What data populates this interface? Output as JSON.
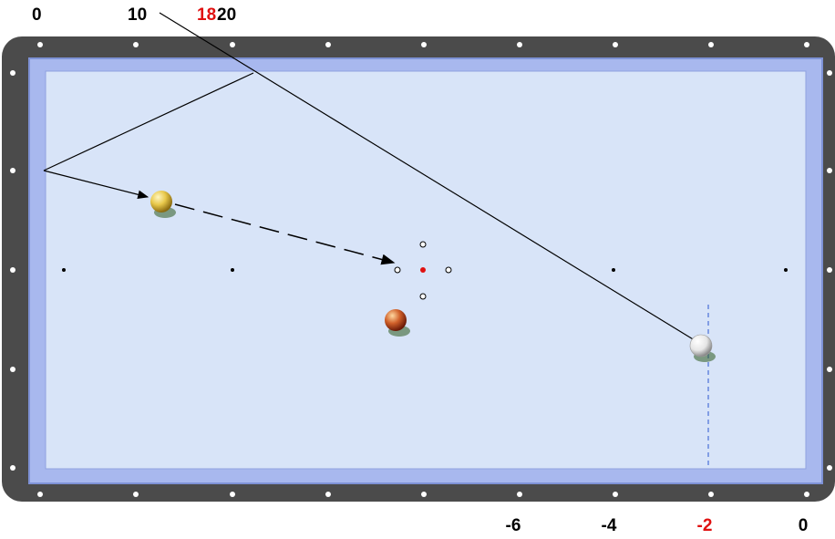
{
  "top_scale": {
    "labels": [
      {
        "id": "top-0",
        "text": "0",
        "color": "#000000"
      },
      {
        "id": "top-10",
        "text": "10",
        "color": "#000000"
      },
      {
        "id": "top-18",
        "text": "18",
        "color": "#e01010"
      },
      {
        "id": "top-20",
        "text": "20",
        "color": "#000000"
      }
    ]
  },
  "bottom_scale": {
    "labels": [
      {
        "id": "bottom-neg6",
        "text": "-6",
        "color": "#000000"
      },
      {
        "id": "bottom-neg4",
        "text": "-4",
        "color": "#000000"
      },
      {
        "id": "bottom-neg2",
        "text": "-2",
        "color": "#e01010"
      },
      {
        "id": "bottom-0",
        "text": "0",
        "color": "#000000"
      }
    ]
  },
  "balls": [
    {
      "name": "yellow-ball",
      "color": "#e8c84a",
      "shade": "#8a6a10"
    },
    {
      "name": "red-ball",
      "color": "#d0602a",
      "shade": "#6a1a08"
    },
    {
      "name": "white-cue-ball",
      "color": "#ffffff",
      "shade": "#8a8a8a"
    }
  ],
  "colors": {
    "frame": "#4b4b4b",
    "cushion": "#a8b8ee",
    "cloth": "#d8e4f8",
    "accent_red": "#e01010",
    "aim_line_blue": "#4a6fd8"
  }
}
